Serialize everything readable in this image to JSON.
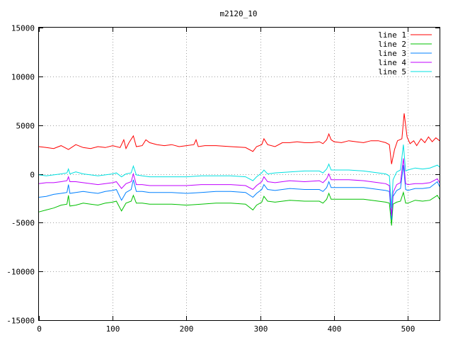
{
  "chart_data": {
    "type": "line",
    "title": "m2120_10",
    "xlabel": "",
    "ylabel": "",
    "xlim": [
      0,
      543
    ],
    "ylim": [
      -15000,
      15000
    ],
    "xticks": [
      0,
      100,
      200,
      300,
      400,
      500
    ],
    "yticks": [
      -15000,
      -10000,
      -5000,
      0,
      5000,
      10000,
      15000
    ],
    "grid": true,
    "legend_position": "top-right",
    "series": [
      {
        "name": "line 1",
        "color": "#ff0000",
        "points": [
          [
            0,
            2800
          ],
          [
            10,
            2700
          ],
          [
            20,
            2600
          ],
          [
            30,
            2900
          ],
          [
            40,
            2500
          ],
          [
            50,
            3000
          ],
          [
            60,
            2700
          ],
          [
            70,
            2600
          ],
          [
            80,
            2800
          ],
          [
            90,
            2700
          ],
          [
            100,
            2900
          ],
          [
            110,
            2700
          ],
          [
            115,
            3500
          ],
          [
            118,
            2600
          ],
          [
            122,
            3200
          ],
          [
            128,
            3900
          ],
          [
            132,
            2800
          ],
          [
            140,
            2900
          ],
          [
            145,
            3500
          ],
          [
            150,
            3200
          ],
          [
            160,
            3000
          ],
          [
            170,
            2900
          ],
          [
            180,
            3000
          ],
          [
            190,
            2800
          ],
          [
            200,
            2900
          ],
          [
            210,
            3000
          ],
          [
            213,
            3500
          ],
          [
            216,
            2800
          ],
          [
            225,
            2900
          ],
          [
            240,
            2900
          ],
          [
            260,
            2800
          ],
          [
            280,
            2700
          ],
          [
            290,
            2300
          ],
          [
            295,
            2800
          ],
          [
            302,
            3000
          ],
          [
            305,
            3600
          ],
          [
            310,
            3000
          ],
          [
            320,
            2800
          ],
          [
            330,
            3200
          ],
          [
            340,
            3200
          ],
          [
            350,
            3300
          ],
          [
            360,
            3200
          ],
          [
            370,
            3200
          ],
          [
            380,
            3300
          ],
          [
            385,
            3100
          ],
          [
            390,
            3500
          ],
          [
            393,
            4100
          ],
          [
            396,
            3500
          ],
          [
            400,
            3300
          ],
          [
            410,
            3200
          ],
          [
            420,
            3400
          ],
          [
            430,
            3300
          ],
          [
            440,
            3200
          ],
          [
            450,
            3400
          ],
          [
            460,
            3400
          ],
          [
            470,
            3200
          ],
          [
            475,
            3000
          ],
          [
            478,
            1000
          ],
          [
            482,
            2500
          ],
          [
            486,
            3400
          ],
          [
            492,
            3600
          ],
          [
            495,
            6200
          ],
          [
            499,
            3800
          ],
          [
            503,
            3100
          ],
          [
            508,
            3400
          ],
          [
            512,
            2900
          ],
          [
            518,
            3600
          ],
          [
            523,
            3200
          ],
          [
            528,
            3800
          ],
          [
            533,
            3300
          ],
          [
            538,
            3700
          ],
          [
            543,
            3400
          ]
        ]
      },
      {
        "name": "line 2",
        "color": "#00c000",
        "points": [
          [
            0,
            -3900
          ],
          [
            10,
            -3700
          ],
          [
            20,
            -3500
          ],
          [
            30,
            -3200
          ],
          [
            38,
            -3100
          ],
          [
            40,
            -2200
          ],
          [
            42,
            -3300
          ],
          [
            50,
            -3200
          ],
          [
            60,
            -3000
          ],
          [
            70,
            -3100
          ],
          [
            80,
            -3200
          ],
          [
            90,
            -3000
          ],
          [
            100,
            -2900
          ],
          [
            105,
            -2800
          ],
          [
            112,
            -3800
          ],
          [
            118,
            -3000
          ],
          [
            125,
            -2800
          ],
          [
            128,
            -2200
          ],
          [
            132,
            -3000
          ],
          [
            140,
            -3000
          ],
          [
            150,
            -3100
          ],
          [
            160,
            -3100
          ],
          [
            180,
            -3100
          ],
          [
            200,
            -3200
          ],
          [
            220,
            -3100
          ],
          [
            240,
            -3000
          ],
          [
            260,
            -3000
          ],
          [
            280,
            -3100
          ],
          [
            290,
            -3700
          ],
          [
            295,
            -3200
          ],
          [
            302,
            -2900
          ],
          [
            305,
            -2300
          ],
          [
            310,
            -2800
          ],
          [
            320,
            -2900
          ],
          [
            340,
            -2700
          ],
          [
            360,
            -2800
          ],
          [
            380,
            -2800
          ],
          [
            385,
            -3000
          ],
          [
            390,
            -2600
          ],
          [
            393,
            -2000
          ],
          [
            396,
            -2600
          ],
          [
            400,
            -2600
          ],
          [
            420,
            -2600
          ],
          [
            440,
            -2600
          ],
          [
            460,
            -2800
          ],
          [
            470,
            -2900
          ],
          [
            475,
            -3000
          ],
          [
            478,
            -5300
          ],
          [
            480,
            -3100
          ],
          [
            485,
            -2900
          ],
          [
            490,
            -2800
          ],
          [
            494,
            -1900
          ],
          [
            497,
            -3000
          ],
          [
            500,
            -3000
          ],
          [
            510,
            -2700
          ],
          [
            520,
            -2800
          ],
          [
            530,
            -2700
          ],
          [
            540,
            -2200
          ],
          [
            543,
            -2600
          ]
        ]
      },
      {
        "name": "line 3",
        "color": "#0080ff",
        "points": [
          [
            0,
            -2400
          ],
          [
            10,
            -2300
          ],
          [
            20,
            -2100
          ],
          [
            30,
            -2000
          ],
          [
            38,
            -1900
          ],
          [
            40,
            -1100
          ],
          [
            42,
            -2000
          ],
          [
            50,
            -1900
          ],
          [
            60,
            -1800
          ],
          [
            70,
            -1900
          ],
          [
            80,
            -2000
          ],
          [
            90,
            -1800
          ],
          [
            100,
            -1700
          ],
          [
            105,
            -1600
          ],
          [
            112,
            -2700
          ],
          [
            118,
            -1900
          ],
          [
            125,
            -1600
          ],
          [
            128,
            -600
          ],
          [
            132,
            -1800
          ],
          [
            140,
            -1800
          ],
          [
            150,
            -1900
          ],
          [
            160,
            -1900
          ],
          [
            180,
            -1900
          ],
          [
            200,
            -2000
          ],
          [
            220,
            -1900
          ],
          [
            240,
            -1800
          ],
          [
            260,
            -1800
          ],
          [
            280,
            -1900
          ],
          [
            290,
            -2400
          ],
          [
            295,
            -2000
          ],
          [
            302,
            -1600
          ],
          [
            305,
            -1100
          ],
          [
            310,
            -1600
          ],
          [
            320,
            -1700
          ],
          [
            340,
            -1500
          ],
          [
            360,
            -1600
          ],
          [
            380,
            -1600
          ],
          [
            385,
            -1800
          ],
          [
            390,
            -1400
          ],
          [
            393,
            -800
          ],
          [
            396,
            -1400
          ],
          [
            400,
            -1400
          ],
          [
            420,
            -1400
          ],
          [
            440,
            -1400
          ],
          [
            460,
            -1600
          ],
          [
            470,
            -1700
          ],
          [
            475,
            -1800
          ],
          [
            478,
            -4700
          ],
          [
            480,
            -2300
          ],
          [
            485,
            -1700
          ],
          [
            490,
            -1500
          ],
          [
            494,
            900
          ],
          [
            497,
            -1600
          ],
          [
            500,
            -1700
          ],
          [
            510,
            -1500
          ],
          [
            520,
            -1500
          ],
          [
            530,
            -1400
          ],
          [
            540,
            -800
          ],
          [
            543,
            -1300
          ]
        ]
      },
      {
        "name": "line 4",
        "color": "#c000ff",
        "points": [
          [
            0,
            -1000
          ],
          [
            10,
            -900
          ],
          [
            20,
            -900
          ],
          [
            30,
            -800
          ],
          [
            38,
            -700
          ],
          [
            40,
            -300
          ],
          [
            42,
            -800
          ],
          [
            50,
            -800
          ],
          [
            60,
            -900
          ],
          [
            70,
            -1000
          ],
          [
            80,
            -1100
          ],
          [
            90,
            -1000
          ],
          [
            100,
            -900
          ],
          [
            105,
            -800
          ],
          [
            112,
            -1500
          ],
          [
            118,
            -1000
          ],
          [
            125,
            -800
          ],
          [
            128,
            0
          ],
          [
            132,
            -1100
          ],
          [
            140,
            -1100
          ],
          [
            150,
            -1200
          ],
          [
            160,
            -1200
          ],
          [
            180,
            -1200
          ],
          [
            200,
            -1200
          ],
          [
            220,
            -1100
          ],
          [
            240,
            -1100
          ],
          [
            260,
            -1100
          ],
          [
            280,
            -1200
          ],
          [
            290,
            -1600
          ],
          [
            295,
            -1200
          ],
          [
            302,
            -800
          ],
          [
            305,
            -300
          ],
          [
            310,
            -800
          ],
          [
            320,
            -900
          ],
          [
            340,
            -700
          ],
          [
            360,
            -800
          ],
          [
            380,
            -700
          ],
          [
            385,
            -900
          ],
          [
            390,
            -500
          ],
          [
            393,
            0
          ],
          [
            396,
            -600
          ],
          [
            400,
            -600
          ],
          [
            420,
            -600
          ],
          [
            440,
            -700
          ],
          [
            460,
            -900
          ],
          [
            470,
            -1000
          ],
          [
            475,
            -1200
          ],
          [
            478,
            -4300
          ],
          [
            480,
            -1900
          ],
          [
            485,
            -1100
          ],
          [
            490,
            -900
          ],
          [
            494,
            1600
          ],
          [
            497,
            -1000
          ],
          [
            500,
            -1100
          ],
          [
            510,
            -1000
          ],
          [
            520,
            -1000
          ],
          [
            530,
            -900
          ],
          [
            540,
            -500
          ],
          [
            543,
            -900
          ]
        ]
      },
      {
        "name": "line 5",
        "color": "#00e0e0",
        "points": [
          [
            0,
            -100
          ],
          [
            10,
            -200
          ],
          [
            20,
            -100
          ],
          [
            30,
            0
          ],
          [
            38,
            100
          ],
          [
            40,
            500
          ],
          [
            42,
            0
          ],
          [
            50,
            200
          ],
          [
            60,
            0
          ],
          [
            70,
            -100
          ],
          [
            80,
            -200
          ],
          [
            90,
            -100
          ],
          [
            100,
            0
          ],
          [
            105,
            100
          ],
          [
            112,
            -300
          ],
          [
            118,
            0
          ],
          [
            125,
            100
          ],
          [
            128,
            800
          ],
          [
            132,
            -100
          ],
          [
            140,
            -200
          ],
          [
            150,
            -300
          ],
          [
            160,
            -300
          ],
          [
            180,
            -300
          ],
          [
            200,
            -300
          ],
          [
            220,
            -200
          ],
          [
            240,
            -200
          ],
          [
            260,
            -200
          ],
          [
            280,
            -300
          ],
          [
            290,
            -700
          ],
          [
            295,
            -300
          ],
          [
            302,
            100
          ],
          [
            305,
            400
          ],
          [
            310,
            0
          ],
          [
            320,
            100
          ],
          [
            340,
            200
          ],
          [
            360,
            300
          ],
          [
            380,
            300
          ],
          [
            385,
            100
          ],
          [
            390,
            500
          ],
          [
            393,
            1000
          ],
          [
            396,
            400
          ],
          [
            400,
            400
          ],
          [
            420,
            400
          ],
          [
            440,
            300
          ],
          [
            460,
            100
          ],
          [
            470,
            0
          ],
          [
            475,
            -200
          ],
          [
            478,
            -3500
          ],
          [
            480,
            -600
          ],
          [
            485,
            200
          ],
          [
            490,
            400
          ],
          [
            494,
            3000
          ],
          [
            497,
            300
          ],
          [
            500,
            400
          ],
          [
            510,
            600
          ],
          [
            520,
            500
          ],
          [
            530,
            600
          ],
          [
            540,
            900
          ],
          [
            543,
            700
          ]
        ]
      }
    ]
  }
}
